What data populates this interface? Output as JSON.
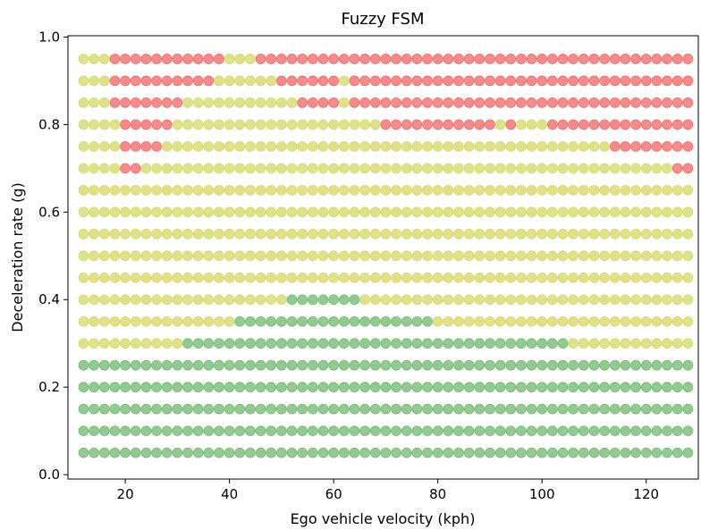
{
  "chart_data": {
    "type": "scatter",
    "title": "Fuzzy FSM",
    "xlabel": "Ego vehicle velocity (kph)",
    "ylabel": "Deceleration rate (g)",
    "xlim": [
      9,
      130
    ],
    "ylim": [
      -0.01,
      1.003
    ],
    "x_ticks": [
      20,
      40,
      60,
      80,
      100,
      120
    ],
    "x_tick_labels": [
      "20",
      "40",
      "60",
      "80",
      "100",
      "120"
    ],
    "y_ticks": [
      0.0,
      0.2,
      0.4,
      0.6,
      0.8,
      1.0
    ],
    "y_tick_labels": [
      "0.0",
      "0.2",
      "0.4",
      "0.6",
      "0.8",
      "1.0"
    ],
    "grid": false,
    "legend": "none",
    "x_values": {
      "start": 12,
      "stop": 128,
      "step": 2
    },
    "y_values": [
      0.05,
      0.1,
      0.15,
      0.2,
      0.25,
      0.3,
      0.35,
      0.4,
      0.45,
      0.5,
      0.55,
      0.6,
      0.65,
      0.7,
      0.75,
      0.8,
      0.85,
      0.9,
      0.95
    ],
    "classes": {
      "G": {
        "color": "#4aa64a"
      },
      "Y": {
        "color": "#c8cf3c"
      },
      "R": {
        "color": "#ef3e3e"
      }
    },
    "marker_opacity": 0.6,
    "rows": [
      {
        "y": 0.05,
        "segments": [
          [
            "G",
            12,
            128
          ]
        ]
      },
      {
        "y": 0.1,
        "segments": [
          [
            "G",
            12,
            128
          ]
        ]
      },
      {
        "y": 0.15,
        "segments": [
          [
            "G",
            12,
            128
          ]
        ]
      },
      {
        "y": 0.2,
        "segments": [
          [
            "G",
            12,
            128
          ]
        ]
      },
      {
        "y": 0.25,
        "segments": [
          [
            "G",
            12,
            128
          ]
        ]
      },
      {
        "y": 0.3,
        "segments": [
          [
            "Y",
            12,
            30
          ],
          [
            "G",
            32,
            104
          ],
          [
            "Y",
            106,
            128
          ]
        ]
      },
      {
        "y": 0.35,
        "segments": [
          [
            "Y",
            12,
            40
          ],
          [
            "G",
            42,
            78
          ],
          [
            "Y",
            80,
            128
          ]
        ]
      },
      {
        "y": 0.4,
        "segments": [
          [
            "Y",
            12,
            50
          ],
          [
            "G",
            52,
            64
          ],
          [
            "Y",
            66,
            128
          ]
        ]
      },
      {
        "y": 0.45,
        "segments": [
          [
            "Y",
            12,
            128
          ]
        ]
      },
      {
        "y": 0.5,
        "segments": [
          [
            "Y",
            12,
            128
          ]
        ]
      },
      {
        "y": 0.55,
        "segments": [
          [
            "Y",
            12,
            128
          ]
        ]
      },
      {
        "y": 0.6,
        "segments": [
          [
            "Y",
            12,
            128
          ]
        ]
      },
      {
        "y": 0.65,
        "segments": [
          [
            "Y",
            12,
            128
          ]
        ]
      },
      {
        "y": 0.7,
        "segments": [
          [
            "Y",
            12,
            18
          ],
          [
            "R",
            20,
            22
          ],
          [
            "Y",
            24,
            124
          ],
          [
            "R",
            126,
            128
          ]
        ]
      },
      {
        "y": 0.75,
        "segments": [
          [
            "Y",
            12,
            18
          ],
          [
            "R",
            20,
            26
          ],
          [
            "Y",
            28,
            112
          ],
          [
            "R",
            114,
            128
          ]
        ]
      },
      {
        "y": 0.8,
        "segments": [
          [
            "Y",
            12,
            18
          ],
          [
            "R",
            20,
            28
          ],
          [
            "Y",
            30,
            68
          ],
          [
            "R",
            70,
            90
          ],
          [
            "Y",
            92,
            92
          ],
          [
            "R",
            94,
            94
          ],
          [
            "Y",
            96,
            100
          ],
          [
            "R",
            102,
            128
          ]
        ]
      },
      {
        "y": 0.85,
        "segments": [
          [
            "Y",
            12,
            16
          ],
          [
            "R",
            18,
            30
          ],
          [
            "Y",
            32,
            52
          ],
          [
            "R",
            54,
            60
          ],
          [
            "Y",
            62,
            62
          ],
          [
            "R",
            64,
            128
          ]
        ]
      },
      {
        "y": 0.9,
        "segments": [
          [
            "Y",
            12,
            16
          ],
          [
            "R",
            18,
            36
          ],
          [
            "Y",
            38,
            48
          ],
          [
            "R",
            50,
            60
          ],
          [
            "Y",
            62,
            62
          ],
          [
            "R",
            64,
            128
          ]
        ]
      },
      {
        "y": 0.95,
        "segments": [
          [
            "Y",
            12,
            16
          ],
          [
            "R",
            18,
            38
          ],
          [
            "Y",
            40,
            44
          ],
          [
            "R",
            46,
            128
          ]
        ]
      }
    ]
  }
}
